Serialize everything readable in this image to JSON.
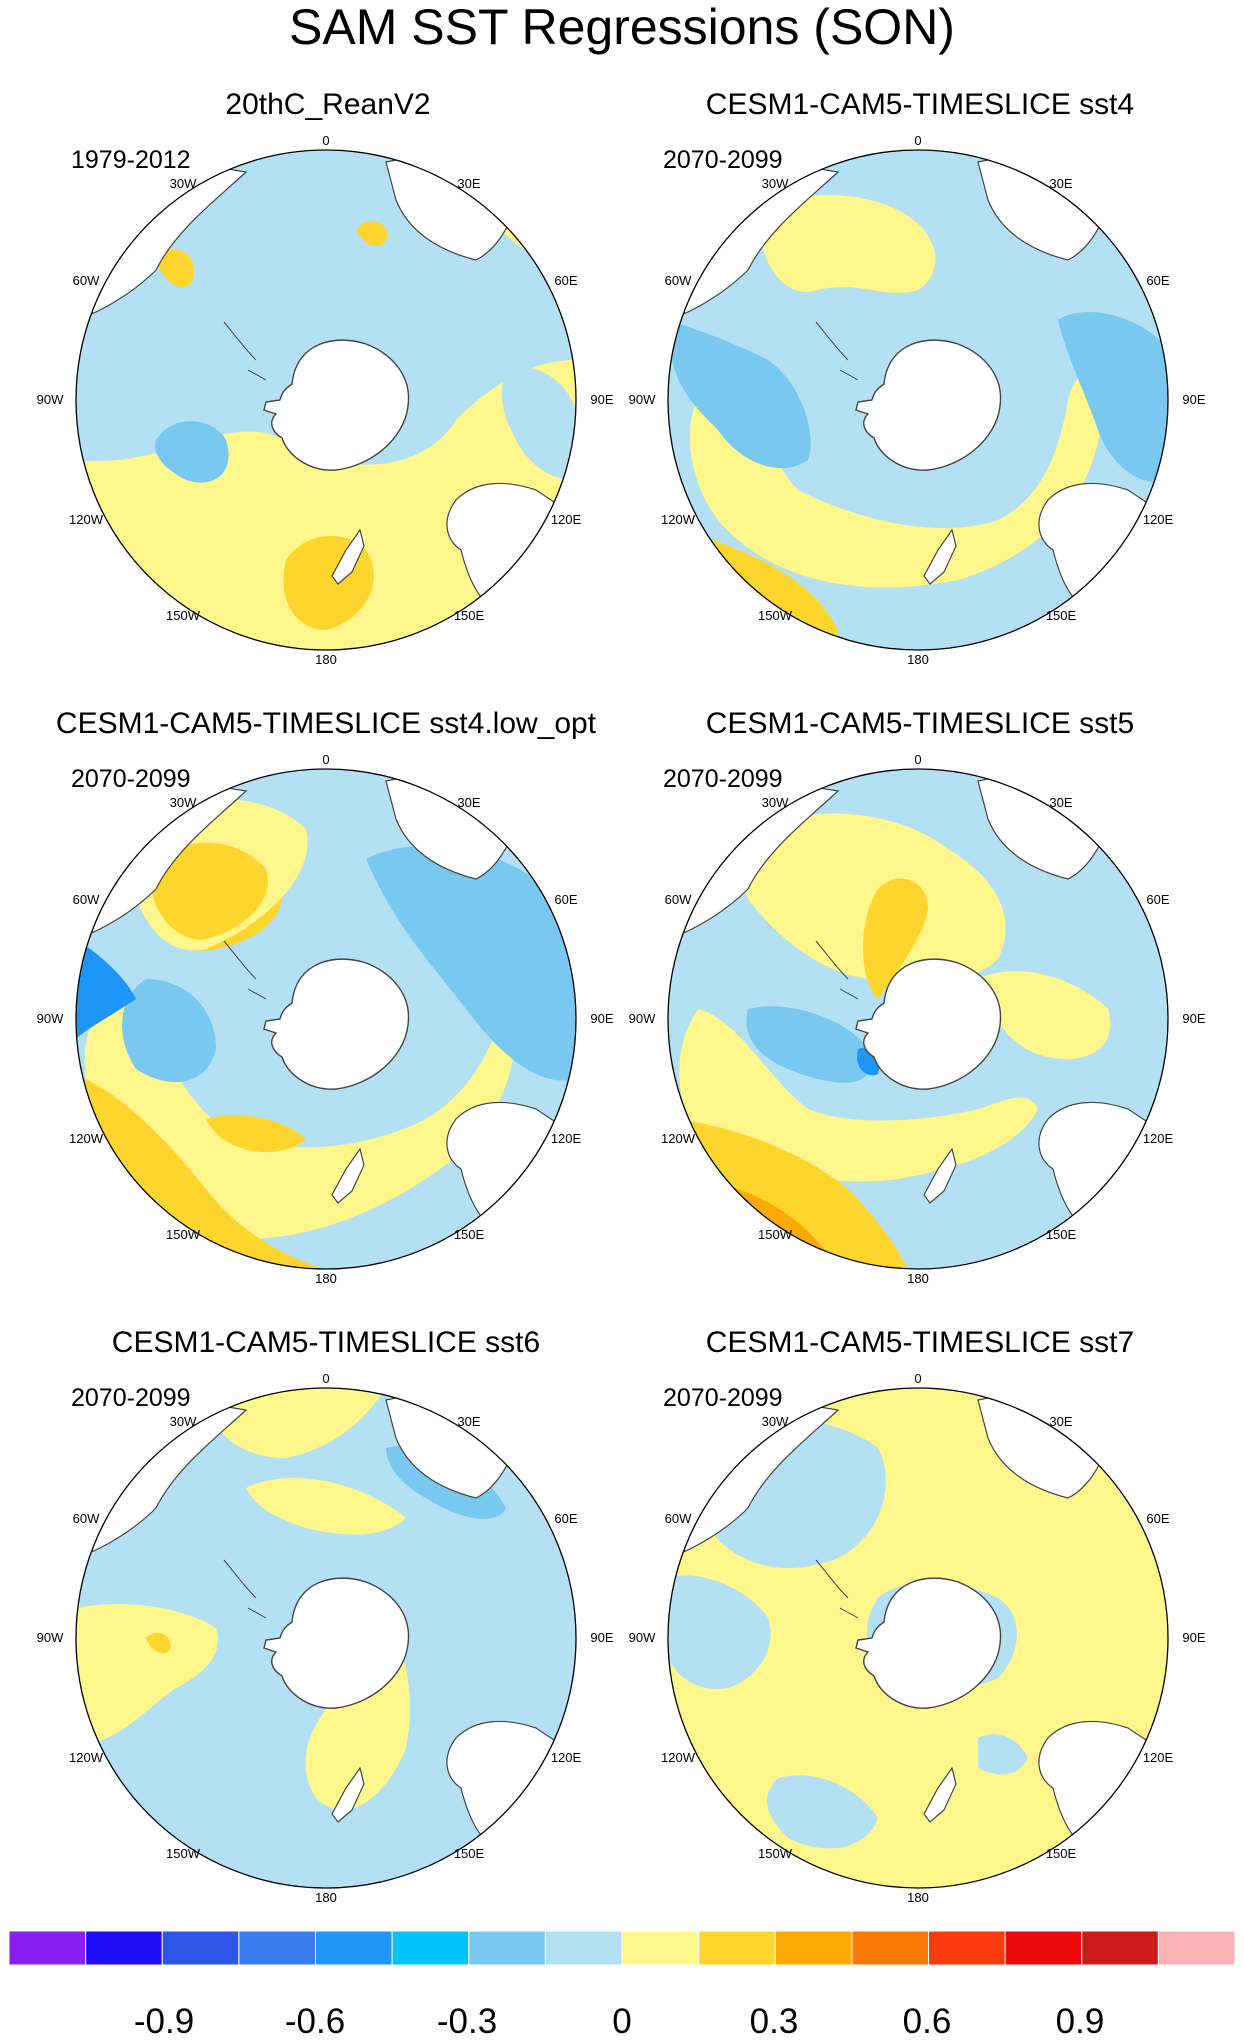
{
  "title": "SAM SST Regressions (SON)",
  "panels": [
    {
      "title": "20thC_ReanV2",
      "period": "1979-2012"
    },
    {
      "title": "CESM1-CAM5-TIMESLICE sst4",
      "period": "2070-2099"
    },
    {
      "title": "CESM1-CAM5-TIMESLICE sst4.low_opt",
      "period": "2070-2099"
    },
    {
      "title": "CESM1-CAM5-TIMESLICE sst5",
      "period": "2070-2099"
    },
    {
      "title": "CESM1-CAM5-TIMESLICE sst6",
      "period": "2070-2099"
    },
    {
      "title": "CESM1-CAM5-TIMESLICE sst7",
      "period": "2070-2099"
    }
  ],
  "longitude_labels": [
    "0",
    "30E",
    "60E",
    "90E",
    "120E",
    "150E",
    "180",
    "150W",
    "120W",
    "90W",
    "60W",
    "30W"
  ],
  "colorbar": {
    "colors": [
      "#8a1ef0",
      "#1e10f5",
      "#2f55e8",
      "#3a7cf0",
      "#1e96f8",
      "#00c3fa",
      "#78c8f0",
      "#b4e0f3",
      "#fff68c",
      "#fed52c",
      "#fdaa05",
      "#fc7a0a",
      "#fb3a0c",
      "#ee0a0a",
      "#cd1b1b",
      "#fbb4b4"
    ],
    "tick_labels": [
      "-0.9",
      "-0.6",
      "-0.3",
      "0",
      "0.3",
      "0.6",
      "0.9"
    ]
  },
  "chart_data": {
    "type": "map",
    "projection": "south polar stereographic",
    "variable": "SST regression onto SAM index",
    "levels": [
      -1.05,
      -0.9,
      -0.75,
      -0.6,
      -0.45,
      -0.3,
      -0.15,
      0,
      0.15,
      0.3,
      0.45,
      0.6,
      0.75,
      0.9,
      1.05
    ],
    "colorbar_range": [
      -1.2,
      1.2
    ]
  }
}
